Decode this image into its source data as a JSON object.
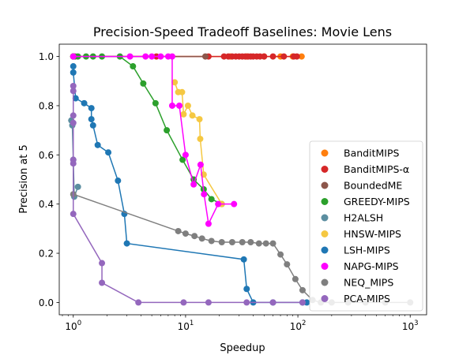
{
  "chart_data": {
    "type": "scatter",
    "title": "Precision-Speed Tradeoff Baselines: Movie Lens",
    "xlabel": "Speedup",
    "ylabel": "Precision at 5",
    "xscale": "log",
    "xlim": [
      0.75,
      1400
    ],
    "ylim": [
      -0.05,
      1.05
    ],
    "x_ticks": [
      {
        "value": 1,
        "label": "10^0"
      },
      {
        "value": 10,
        "label": "10^1"
      },
      {
        "value": 100,
        "label": "10^2"
      },
      {
        "value": 1000,
        "label": "10^3"
      }
    ],
    "y_ticks": [
      {
        "value": 0.0,
        "label": "0.0"
      },
      {
        "value": 0.2,
        "label": "0.2"
      },
      {
        "value": 0.4,
        "label": "0.4"
      },
      {
        "value": 0.6,
        "label": "0.6"
      },
      {
        "value": 0.8,
        "label": "0.8"
      },
      {
        "value": 1.0,
        "label": "1.0"
      }
    ],
    "grid": false,
    "legend_position": "lower-right",
    "series": [
      {
        "name": "BanditMIPS",
        "color": "#ff7f0e",
        "points": [
          [
            1.0,
            1.0
          ],
          [
            25,
            1.0
          ],
          [
            35,
            1.0
          ],
          [
            50,
            1.0
          ],
          [
            70,
            1.0
          ],
          [
            90,
            1.0
          ],
          [
            108,
            1.0
          ]
        ]
      },
      {
        "name": "BanditMIPS-α",
        "color": "#d62728",
        "points": [
          [
            1.0,
            1.0
          ],
          [
            5.5,
            1.0
          ],
          [
            16,
            1.0
          ],
          [
            22,
            1.0
          ],
          [
            24,
            1.0
          ],
          [
            26,
            1.0
          ],
          [
            28,
            1.0
          ],
          [
            30,
            1.0
          ],
          [
            32,
            1.0
          ],
          [
            34,
            1.0
          ],
          [
            36,
            1.0
          ],
          [
            38,
            1.0
          ],
          [
            40,
            1.0
          ],
          [
            43,
            1.0
          ],
          [
            46,
            1.0
          ],
          [
            50,
            1.0
          ],
          [
            60,
            1.0
          ],
          [
            75,
            1.0
          ],
          [
            92,
            1.0
          ],
          [
            98,
            1.0
          ]
        ]
      },
      {
        "name": "BoundedME",
        "color": "#8c564b",
        "points": [
          [
            1.0,
            1.0
          ],
          [
            1.04,
            1.0
          ],
          [
            15,
            1.0
          ]
        ]
      },
      {
        "name": "GREEDY-MIPS",
        "color": "#2ca02c",
        "points": [
          [
            1.0,
            1.0
          ],
          [
            1.1,
            1.0
          ],
          [
            1.3,
            1.0
          ],
          [
            1.5,
            1.0
          ],
          [
            1.8,
            1.0
          ],
          [
            2.6,
            1.0
          ],
          [
            3.4,
            0.96
          ],
          [
            4.2,
            0.89
          ],
          [
            5.4,
            0.81
          ],
          [
            6.8,
            0.7
          ],
          [
            9.4,
            0.58
          ],
          [
            11.8,
            0.5
          ],
          [
            14.5,
            0.46
          ],
          [
            17,
            0.42
          ],
          [
            21,
            0.4
          ]
        ]
      },
      {
        "name": "H2ALSH",
        "color": "#5b8ea0",
        "points": [
          [
            0.96,
            0.74
          ],
          [
            0.98,
            0.72
          ],
          [
            1.0,
            0.58
          ],
          [
            1.02,
            0.43
          ],
          [
            1.1,
            0.47
          ]
        ]
      },
      {
        "name": "HNSW-MIPS",
        "color": "#f5c842",
        "points": [
          [
            8.0,
            0.895
          ],
          [
            8.6,
            0.855
          ],
          [
            9.3,
            0.855
          ],
          [
            9.6,
            0.765
          ],
          [
            10.5,
            0.8
          ],
          [
            11.5,
            0.76
          ],
          [
            13.3,
            0.745
          ],
          [
            13.5,
            0.665
          ],
          [
            14.5,
            0.52
          ],
          [
            21,
            0.4
          ]
        ]
      },
      {
        "name": "LSH-MIPS",
        "color": "#1f77b4",
        "points": [
          [
            1.0,
            0.96
          ],
          [
            1.0,
            0.935
          ],
          [
            1.05,
            0.83
          ],
          [
            1.25,
            0.81
          ],
          [
            1.45,
            0.79
          ],
          [
            1.45,
            0.745
          ],
          [
            1.5,
            0.72
          ],
          [
            1.65,
            0.64
          ],
          [
            2.05,
            0.61
          ],
          [
            2.5,
            0.495
          ],
          [
            2.85,
            0.36
          ],
          [
            3.0,
            0.24
          ],
          [
            33,
            0.175
          ],
          [
            35,
            0.055
          ],
          [
            40,
            0.0
          ],
          [
            60,
            0.0
          ],
          [
            110,
            0.0
          ],
          [
            120,
            0.0
          ]
        ]
      },
      {
        "name": "NAPG-MIPS",
        "color": "#ff00ff",
        "points": [
          [
            1.0,
            1.0
          ],
          [
            3.2,
            1.0
          ],
          [
            4.4,
            1.0
          ],
          [
            5.0,
            1.0
          ],
          [
            6.0,
            1.0
          ],
          [
            7.0,
            1.0
          ],
          [
            7.6,
            1.0
          ],
          [
            7.6,
            0.8
          ],
          [
            8.8,
            0.8
          ],
          [
            10,
            0.6
          ],
          [
            11.8,
            0.48
          ],
          [
            13.6,
            0.56
          ],
          [
            14.6,
            0.44
          ],
          [
            16,
            0.32
          ],
          [
            19.5,
            0.4
          ],
          [
            27,
            0.4
          ]
        ]
      },
      {
        "name": "NEQ_MIPS",
        "color": "#7f7f7f",
        "points": [
          [
            1.0,
            0.44
          ],
          [
            8.6,
            0.29
          ],
          [
            10,
            0.28
          ],
          [
            12,
            0.27
          ],
          [
            14,
            0.26
          ],
          [
            17,
            0.25
          ],
          [
            21,
            0.245
          ],
          [
            26,
            0.245
          ],
          [
            32,
            0.245
          ],
          [
            38,
            0.245
          ],
          [
            45,
            0.24
          ],
          [
            52,
            0.24
          ],
          [
            60,
            0.24
          ],
          [
            70,
            0.195
          ],
          [
            80,
            0.155
          ],
          [
            95,
            0.095
          ],
          [
            110,
            0.05
          ],
          [
            135,
            0.01
          ],
          [
            160,
            0.0
          ],
          [
            200,
            0.0
          ],
          [
            280,
            0.0
          ],
          [
            400,
            0.0
          ],
          [
            600,
            0.0
          ],
          [
            1000,
            0.0
          ]
        ]
      },
      {
        "name": "PCA-MIPS",
        "color": "#9467bd",
        "points": [
          [
            1.0,
            0.88
          ],
          [
            1.0,
            0.86
          ],
          [
            1.0,
            0.76
          ],
          [
            1.0,
            0.73
          ],
          [
            1.0,
            0.58
          ],
          [
            1.0,
            0.565
          ],
          [
            1.0,
            0.36
          ],
          [
            1.8,
            0.16
          ],
          [
            1.8,
            0.08
          ],
          [
            3.8,
            0.0
          ],
          [
            9.6,
            0.0
          ],
          [
            16,
            0.0
          ],
          [
            35,
            0.0
          ],
          [
            60,
            0.0
          ],
          [
            110,
            0.0
          ]
        ]
      }
    ]
  }
}
